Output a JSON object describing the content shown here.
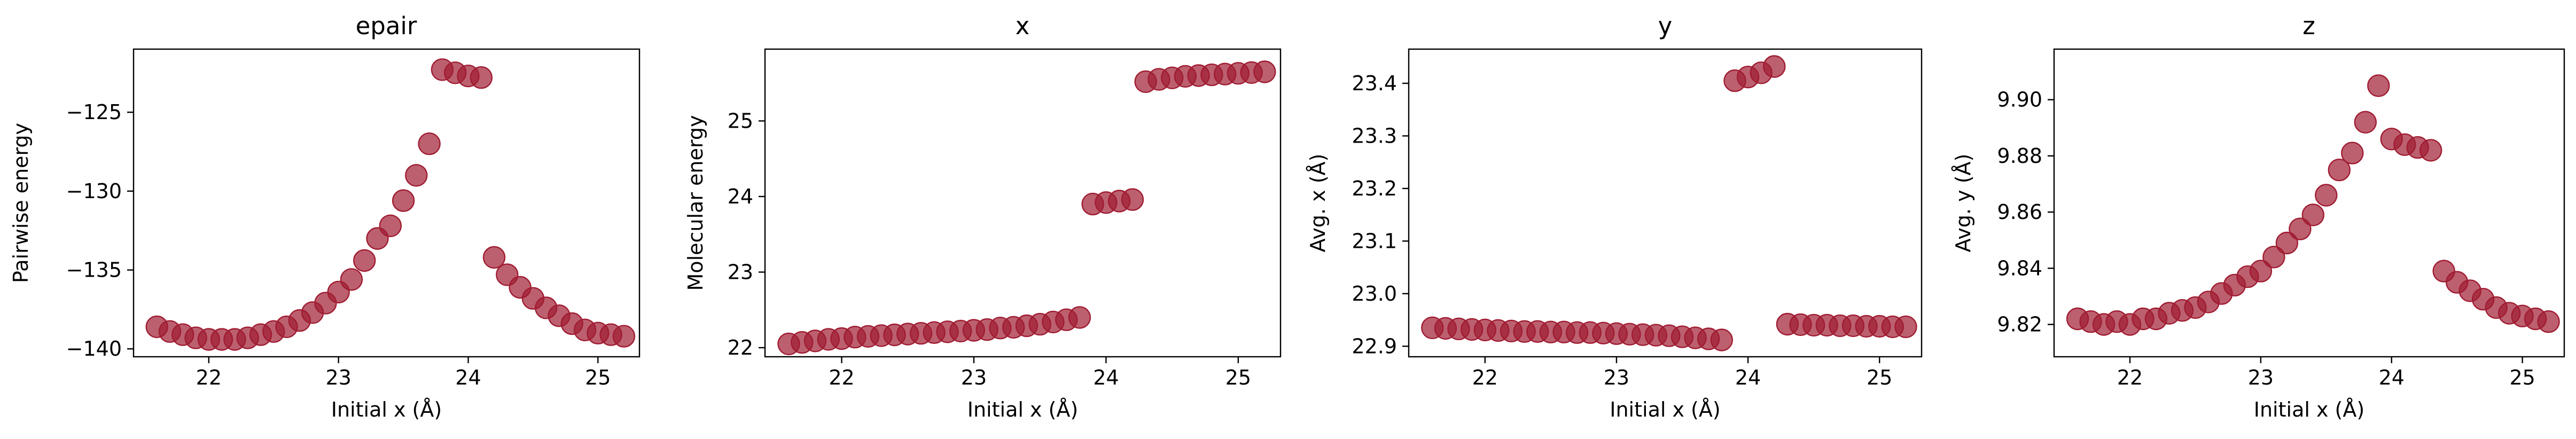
{
  "chart_data": [
    {
      "type": "scatter",
      "title": "epair",
      "xlabel": "Initial x (Å)",
      "ylabel": "Pairwise energy",
      "xlim": [
        21.42,
        25.32
      ],
      "ylim": [
        -140.5,
        -121.0
      ],
      "xticks": [
        22,
        23,
        24,
        25
      ],
      "yticks": [
        -140,
        -135,
        -130,
        -125
      ],
      "x": [
        21.6,
        21.7,
        21.8,
        21.9,
        22.0,
        22.1,
        22.2,
        22.3,
        22.4,
        22.5,
        22.6,
        22.7,
        22.8,
        22.9,
        23.0,
        23.1,
        23.2,
        23.3,
        23.4,
        23.5,
        23.6,
        23.7,
        23.8,
        23.9,
        24.0,
        24.1,
        24.2,
        24.3,
        24.4,
        24.5,
        24.6,
        24.7,
        24.8,
        24.9,
        25.0,
        25.1,
        25.2
      ],
      "y": [
        -138.6,
        -138.9,
        -139.1,
        -139.3,
        -139.4,
        -139.4,
        -139.4,
        -139.3,
        -139.1,
        -138.9,
        -138.6,
        -138.2,
        -137.7,
        -137.1,
        -136.4,
        -135.6,
        -134.4,
        -133.0,
        -132.2,
        -130.6,
        -129.0,
        -127.0,
        -122.3,
        -122.5,
        -122.7,
        -122.8,
        -134.2,
        -135.3,
        -136.1,
        -136.8,
        -137.4,
        -137.9,
        -138.4,
        -138.8,
        -139.0,
        -139.1,
        -139.2
      ],
      "color": "#a01c32",
      "grid": false
    },
    {
      "type": "scatter",
      "title": "x",
      "xlabel": "Initial x (Å)",
      "ylabel": "Molecular energy",
      "xlim": [
        21.42,
        25.32
      ],
      "ylim": [
        21.88,
        25.95
      ],
      "xticks": [
        22,
        23,
        24,
        25
      ],
      "yticks": [
        22,
        23,
        24,
        25
      ],
      "x": [
        21.6,
        21.7,
        21.8,
        21.9,
        22.0,
        22.1,
        22.2,
        22.3,
        22.4,
        22.5,
        22.6,
        22.7,
        22.8,
        22.9,
        23.0,
        23.1,
        23.2,
        23.3,
        23.4,
        23.5,
        23.6,
        23.7,
        23.8,
        23.9,
        24.0,
        24.1,
        24.2,
        24.3,
        24.4,
        24.5,
        24.6,
        24.7,
        24.8,
        24.9,
        25.0,
        25.1,
        25.2
      ],
      "y": [
        22.05,
        22.07,
        22.09,
        22.11,
        22.12,
        22.14,
        22.15,
        22.16,
        22.17,
        22.18,
        22.19,
        22.2,
        22.21,
        22.22,
        22.23,
        22.24,
        22.26,
        22.27,
        22.29,
        22.31,
        22.34,
        22.37,
        22.4,
        23.9,
        23.92,
        23.94,
        23.96,
        25.52,
        25.55,
        25.57,
        25.59,
        25.6,
        25.61,
        25.62,
        25.63,
        25.64,
        25.65
      ],
      "color": "#a01c32",
      "grid": false
    },
    {
      "type": "scatter",
      "title": "y",
      "xlabel": "Initial x (Å)",
      "ylabel": "Avg. x (Å)",
      "xlim": [
        21.42,
        25.32
      ],
      "ylim": [
        22.88,
        23.465
      ],
      "xticks": [
        22,
        23,
        24,
        25
      ],
      "yticks": [
        22.9,
        23.0,
        23.1,
        23.2,
        23.3,
        23.4
      ],
      "x": [
        21.6,
        21.7,
        21.8,
        21.9,
        22.0,
        22.1,
        22.2,
        22.3,
        22.4,
        22.5,
        22.6,
        22.7,
        22.8,
        22.9,
        23.0,
        23.1,
        23.2,
        23.3,
        23.4,
        23.5,
        23.6,
        23.7,
        23.8,
        23.9,
        24.0,
        24.1,
        24.2,
        24.3,
        24.4,
        24.5,
        24.6,
        24.7,
        24.8,
        24.9,
        25.0,
        25.1,
        25.2
      ],
      "y": [
        22.935,
        22.934,
        22.933,
        22.932,
        22.931,
        22.93,
        22.929,
        22.928,
        22.928,
        22.927,
        22.927,
        22.926,
        22.926,
        22.925,
        22.924,
        22.923,
        22.922,
        22.921,
        22.92,
        22.918,
        22.916,
        22.914,
        22.912,
        23.405,
        23.412,
        23.42,
        23.432,
        22.942,
        22.941,
        22.94,
        22.94,
        22.939,
        22.939,
        22.938,
        22.938,
        22.937,
        22.937
      ],
      "color": "#a01c32",
      "grid": false
    },
    {
      "type": "scatter",
      "title": "z",
      "xlabel": "Initial x (Å)",
      "ylabel": "Avg. y (Å)",
      "xlim": [
        21.42,
        25.32
      ],
      "ylim": [
        9.8085,
        9.918
      ],
      "xticks": [
        22,
        23,
        24,
        25
      ],
      "yticks": [
        9.82,
        9.84,
        9.86,
        9.88,
        9.9
      ],
      "x": [
        21.6,
        21.7,
        21.8,
        21.9,
        22.0,
        22.1,
        22.2,
        22.3,
        22.4,
        22.5,
        22.6,
        22.7,
        22.8,
        22.9,
        23.0,
        23.1,
        23.2,
        23.3,
        23.4,
        23.5,
        23.6,
        23.7,
        23.8,
        23.9,
        24.0,
        24.1,
        24.2,
        24.3,
        24.4,
        24.5,
        24.6,
        24.7,
        24.8,
        24.9,
        25.0,
        25.1,
        25.2
      ],
      "y": [
        9.822,
        9.821,
        9.82,
        9.821,
        9.82,
        9.822,
        9.822,
        9.824,
        9.825,
        9.826,
        9.828,
        9.831,
        9.834,
        9.837,
        9.839,
        9.844,
        9.849,
        9.854,
        9.859,
        9.866,
        9.875,
        9.881,
        9.892,
        9.905,
        9.886,
        9.884,
        9.883,
        9.882,
        9.839,
        9.835,
        9.832,
        9.829,
        9.826,
        9.824,
        9.823,
        9.822,
        9.821
      ],
      "color": "#a01c32",
      "grid": false
    }
  ]
}
